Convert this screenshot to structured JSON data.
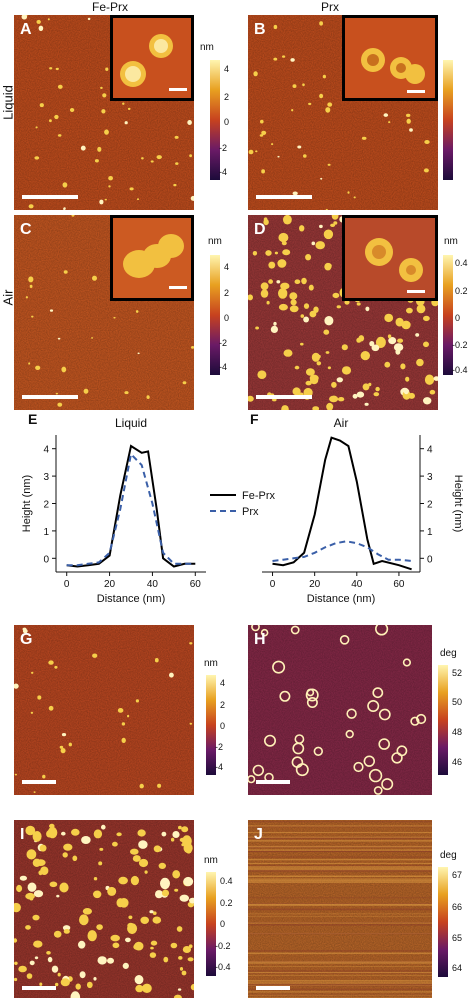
{
  "column_titles": {
    "left": "Fe-Prx",
    "right": "Prx"
  },
  "row_labels": {
    "liquid": "Liquid",
    "air": "Air"
  },
  "panels": {
    "A": "A",
    "B": "B",
    "C": "C",
    "D": "D",
    "E": "E",
    "F": "F",
    "G": "G",
    "H": "H",
    "I": "I",
    "J": "J"
  },
  "colorbars": {
    "ab": {
      "unit": "nm",
      "ticks": [
        "4",
        "2",
        "0",
        "-2",
        "-4"
      ]
    },
    "c": {
      "unit": "nm",
      "ticks": [
        "4",
        "2",
        "0",
        "-2",
        "-4"
      ]
    },
    "d": {
      "unit": "nm",
      "ticks": [
        "0.4",
        "0.2",
        "0",
        "-0.2",
        "-0.4"
      ]
    },
    "g": {
      "unit": "nm",
      "ticks": [
        "4",
        "2",
        "0",
        "-2",
        "-4"
      ]
    },
    "h": {
      "unit": "deg",
      "ticks": [
        "52",
        "50",
        "48",
        "46"
      ]
    },
    "i": {
      "unit": "nm",
      "ticks": [
        "0.4",
        "0.2",
        "0",
        "-0.2",
        "-0.4"
      ]
    },
    "j": {
      "unit": "deg",
      "ticks": [
        "67",
        "66",
        "65",
        "64"
      ]
    }
  },
  "chart_data": [
    {
      "type": "line",
      "panel": "E",
      "title": "Liquid",
      "xlabel": "Distance (nm)",
      "ylabel": "Height (nm)",
      "xlim": [
        -5,
        65
      ],
      "ylim": [
        -0.5,
        4.5
      ],
      "xticks": [
        "0",
        "20",
        "40",
        "60"
      ],
      "yticks": [
        "0",
        "1",
        "2",
        "3",
        "4"
      ],
      "series": [
        {
          "name": "Fe-Prx",
          "style": "solid",
          "color": "#000000",
          "x": [
            0,
            5,
            10,
            15,
            20,
            25,
            30,
            35,
            38,
            42,
            45,
            50,
            55,
            60
          ],
          "y": [
            -0.25,
            -0.3,
            -0.25,
            -0.2,
            0.1,
            2.3,
            4.1,
            3.85,
            3.9,
            1.8,
            0.0,
            -0.3,
            -0.2,
            -0.2
          ]
        },
        {
          "name": "Prx",
          "style": "dashed",
          "color": "#3a5fa8",
          "x": [
            0,
            5,
            10,
            15,
            20,
            25,
            30,
            35,
            40,
            45,
            50,
            55,
            60
          ],
          "y": [
            -0.25,
            -0.25,
            -0.2,
            -0.15,
            0.2,
            1.8,
            3.8,
            3.4,
            2.0,
            0.2,
            -0.2,
            -0.2,
            -0.2
          ]
        }
      ]
    },
    {
      "type": "line",
      "panel": "F",
      "title": "Air",
      "xlabel": "Distance (nm)",
      "ylabel": "Height (nm)",
      "xlim": [
        -5,
        70
      ],
      "ylim": [
        -0.5,
        4.5
      ],
      "xticks": [
        "0",
        "20",
        "40",
        "60"
      ],
      "yticks": [
        "0",
        "1",
        "2",
        "3",
        "4"
      ],
      "legend": {
        "position": "left",
        "entries": [
          "Fe-Prx",
          "Prx"
        ]
      },
      "series": [
        {
          "name": "Fe-Prx",
          "style": "solid",
          "color": "#000000",
          "x": [
            0,
            5,
            10,
            15,
            20,
            25,
            28,
            32,
            36,
            40,
            45,
            48,
            52,
            60,
            66
          ],
          "y": [
            -0.2,
            -0.25,
            -0.15,
            0.2,
            1.6,
            3.6,
            4.4,
            4.3,
            4.1,
            2.8,
            0.7,
            -0.2,
            -0.1,
            -0.25,
            -0.4
          ]
        },
        {
          "name": "Prx",
          "style": "dashed",
          "color": "#3a5fa8",
          "x": [
            0,
            5,
            10,
            15,
            20,
            25,
            30,
            35,
            40,
            45,
            50,
            55,
            60,
            66
          ],
          "y": [
            -0.1,
            -0.05,
            0.0,
            0.05,
            0.2,
            0.4,
            0.55,
            0.62,
            0.55,
            0.4,
            0.15,
            -0.05,
            -0.05,
            -0.1
          ]
        }
      ]
    }
  ]
}
